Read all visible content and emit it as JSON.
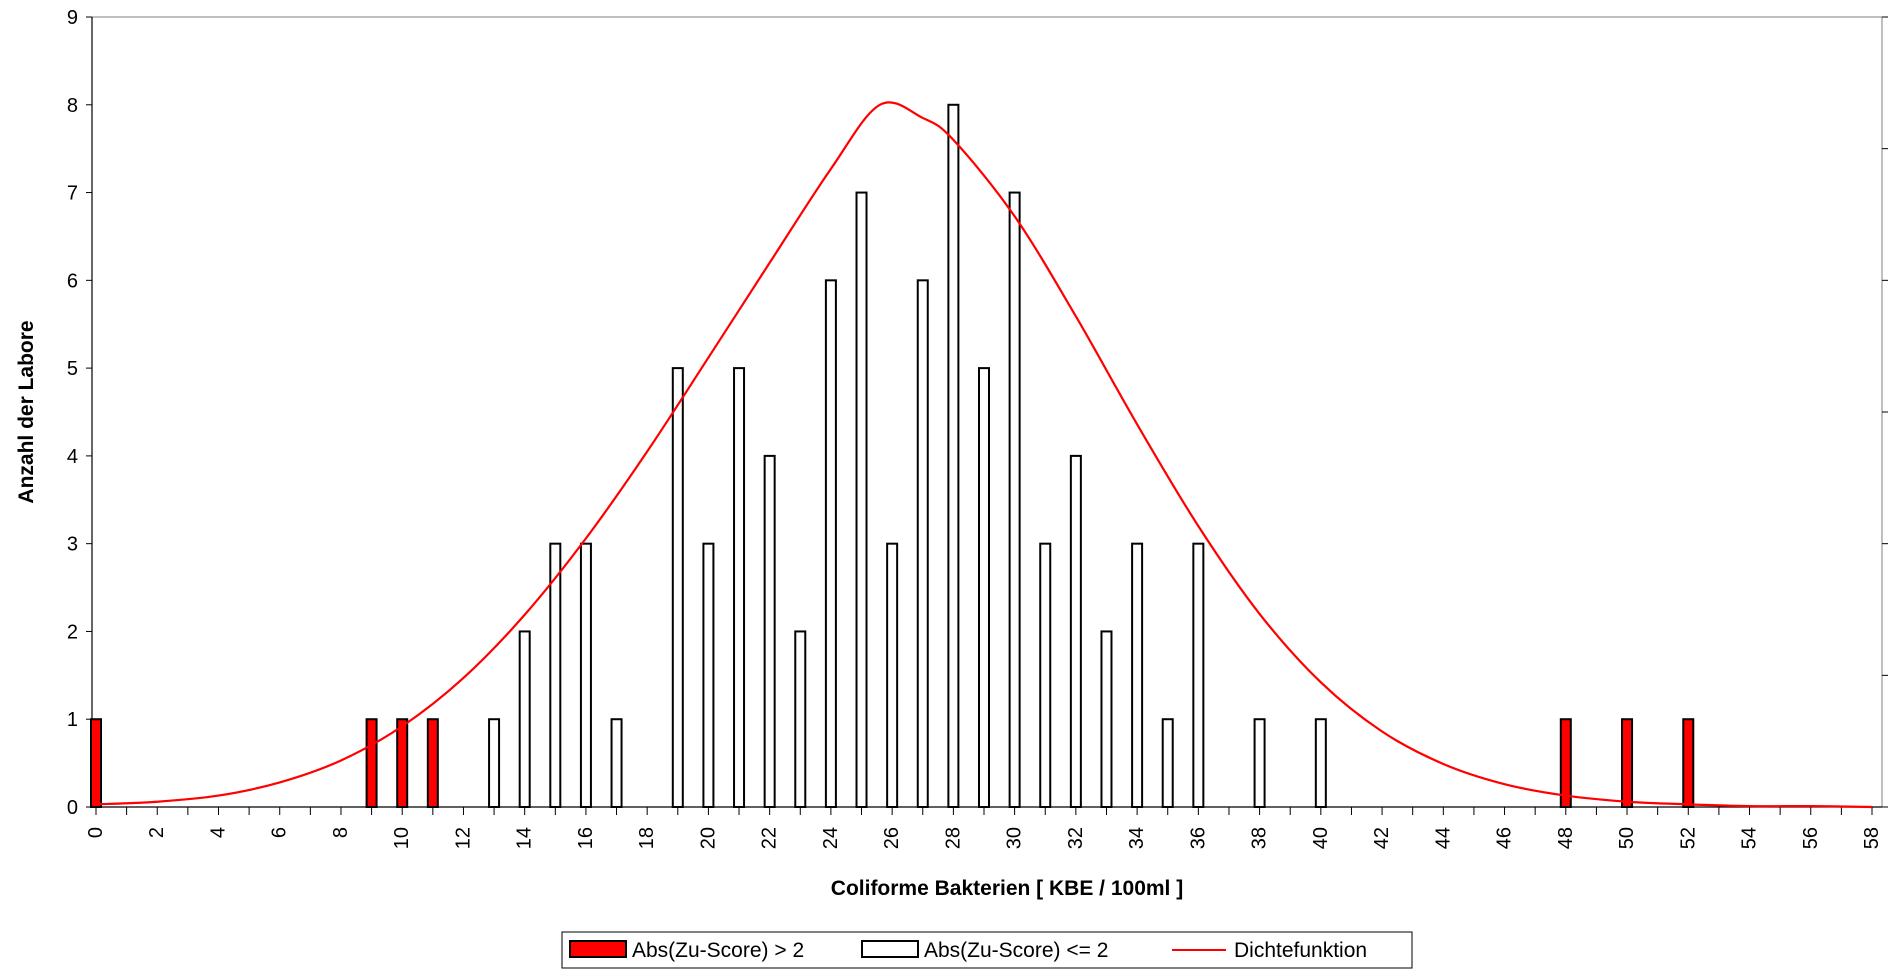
{
  "chart_data": {
    "type": "bar",
    "title": "",
    "xlabel": "Coliforme Bakterien [ KBE / 100ml ]",
    "ylabel": "Anzahl der Labore",
    "xlim": [
      0,
      58
    ],
    "ylim": [
      0,
      9
    ],
    "x_tick_labels": [
      "0",
      "2",
      "4",
      "6",
      "8",
      "10",
      "12",
      "14",
      "16",
      "18",
      "20",
      "22",
      "24",
      "26",
      "28",
      "30",
      "32",
      "34",
      "36",
      "38",
      "40",
      "42",
      "44",
      "46",
      "48",
      "50",
      "52",
      "54",
      "56",
      "58"
    ],
    "y_tick_labels": [
      "0",
      "1",
      "2",
      "3",
      "4",
      "5",
      "6",
      "7",
      "8",
      "9"
    ],
    "grid": false,
    "legend_position": "bottom",
    "colors": {
      "outlier": "#ff0000",
      "normal": "#ffffff",
      "density": "#ff0000",
      "outline": "#000000"
    },
    "series": [
      {
        "name": "Abs(Zu-Score) > 2",
        "kind": "bar",
        "points": [
          {
            "x": 0,
            "y": 1
          },
          {
            "x": 9,
            "y": 1
          },
          {
            "x": 10,
            "y": 1
          },
          {
            "x": 11,
            "y": 1
          },
          {
            "x": 48,
            "y": 1
          },
          {
            "x": 50,
            "y": 1
          },
          {
            "x": 52,
            "y": 1
          }
        ]
      },
      {
        "name": "Abs(Zu-Score) <= 2",
        "kind": "bar",
        "points": [
          {
            "x": 13,
            "y": 1
          },
          {
            "x": 14,
            "y": 2
          },
          {
            "x": 15,
            "y": 3
          },
          {
            "x": 16,
            "y": 3
          },
          {
            "x": 17,
            "y": 1
          },
          {
            "x": 19,
            "y": 5
          },
          {
            "x": 20,
            "y": 3
          },
          {
            "x": 21,
            "y": 5
          },
          {
            "x": 22,
            "y": 4
          },
          {
            "x": 23,
            "y": 2
          },
          {
            "x": 24,
            "y": 6
          },
          {
            "x": 25,
            "y": 7
          },
          {
            "x": 26,
            "y": 3
          },
          {
            "x": 27,
            "y": 6
          },
          {
            "x": 28,
            "y": 8
          },
          {
            "x": 29,
            "y": 5
          },
          {
            "x": 30,
            "y": 7
          },
          {
            "x": 31,
            "y": 3
          },
          {
            "x": 32,
            "y": 4
          },
          {
            "x": 33,
            "y": 2
          },
          {
            "x": 34,
            "y": 3
          },
          {
            "x": 35,
            "y": 1
          },
          {
            "x": 36,
            "y": 3
          },
          {
            "x": 38,
            "y": 1
          },
          {
            "x": 40,
            "y": 1
          }
        ]
      },
      {
        "name": "Dichtefunktion",
        "kind": "line",
        "x": [
          0,
          2,
          4,
          6,
          8,
          10,
          12,
          14,
          16,
          18,
          20,
          22,
          24,
          25.6,
          27,
          28,
          30,
          32,
          34,
          36,
          38,
          40,
          42,
          44,
          46,
          48,
          50,
          52,
          54,
          56,
          58
        ],
        "y": [
          0.03,
          0.06,
          0.13,
          0.28,
          0.53,
          0.92,
          1.47,
          2.19,
          3.06,
          4.05,
          5.12,
          6.2,
          7.27,
          8.0,
          7.85,
          7.6,
          6.73,
          5.59,
          4.36,
          3.2,
          2.2,
          1.42,
          0.86,
          0.49,
          0.26,
          0.13,
          0.06,
          0.03,
          0.01,
          0.01,
          0.0
        ]
      }
    ]
  }
}
